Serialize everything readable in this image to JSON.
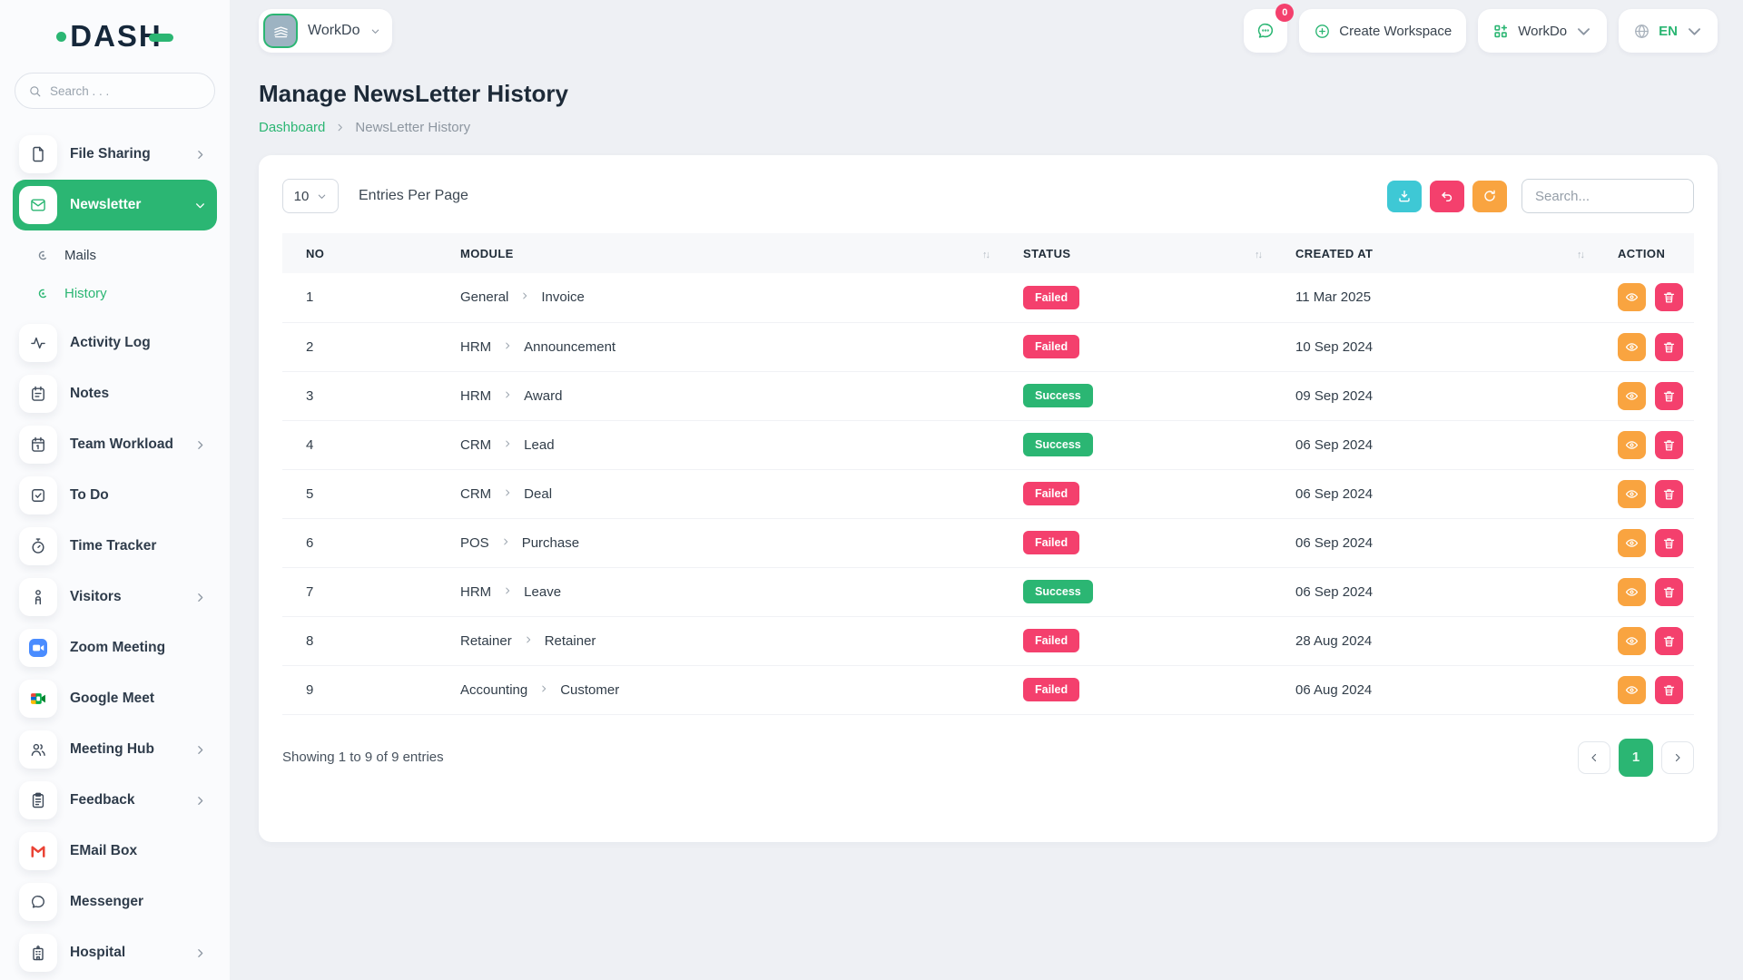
{
  "colors": {
    "primary": "#2bb673",
    "danger": "#f4406d",
    "warning": "#f9a440",
    "info": "#3ec8d5"
  },
  "brand": {
    "name": "DASH"
  },
  "sidebar": {
    "search_placeholder": "Search . . .",
    "items": [
      {
        "label": "File Sharing",
        "icon": "file",
        "chevron": "right"
      },
      {
        "label": "Newsletter",
        "icon": "mail",
        "chevron": "down",
        "active": true,
        "children": [
          {
            "label": "Mails",
            "active": false
          },
          {
            "label": "History",
            "active": true
          }
        ]
      },
      {
        "label": "Activity Log",
        "icon": "activity"
      },
      {
        "label": "Notes",
        "icon": "note"
      },
      {
        "label": "Team Workload",
        "icon": "calendar",
        "chevron": "right"
      },
      {
        "label": "To Do",
        "icon": "check-square"
      },
      {
        "label": "Time Tracker",
        "icon": "alarm"
      },
      {
        "label": "Visitors",
        "icon": "person",
        "chevron": "right"
      },
      {
        "label": "Zoom Meeting",
        "icon": "zoom"
      },
      {
        "label": "Google Meet",
        "icon": "meet"
      },
      {
        "label": "Meeting Hub",
        "icon": "users",
        "chevron": "right"
      },
      {
        "label": "Feedback",
        "icon": "clipboard",
        "chevron": "right"
      },
      {
        "label": "EMail Box",
        "icon": "gmail"
      },
      {
        "label": "Messenger",
        "icon": "chat"
      },
      {
        "label": "Hospital",
        "icon": "hospital",
        "chevron": "right"
      }
    ]
  },
  "topbar": {
    "workspace_label": "WorkDo",
    "messages_badge": "0",
    "create_workspace_label": "Create Workspace",
    "workdo_menu_label": "WorkDo",
    "language": "EN"
  },
  "page": {
    "title": "Manage NewsLetter History",
    "breadcrumb": [
      {
        "label": "Dashboard"
      },
      {
        "label": "NewsLetter History"
      }
    ]
  },
  "card": {
    "entries_per_page": {
      "value": "10",
      "label": "Entries Per Page"
    },
    "search_placeholder": "Search...",
    "table": {
      "columns": [
        {
          "label": "NO",
          "sortable": false
        },
        {
          "label": "MODULE",
          "sortable": true
        },
        {
          "label": "STATUS",
          "sortable": true
        },
        {
          "label": "CREATED AT",
          "sortable": true
        },
        {
          "label": "ACTION",
          "sortable": false
        }
      ],
      "rows": [
        {
          "no": "1",
          "module": "General",
          "submodule": "Invoice",
          "status": "Failed",
          "created_at": "11 Mar 2025"
        },
        {
          "no": "2",
          "module": "HRM",
          "submodule": "Announcement",
          "status": "Failed",
          "created_at": "10 Sep 2024"
        },
        {
          "no": "3",
          "module": "HRM",
          "submodule": "Award",
          "status": "Success",
          "created_at": "09 Sep 2024"
        },
        {
          "no": "4",
          "module": "CRM",
          "submodule": "Lead",
          "status": "Success",
          "created_at": "06 Sep 2024"
        },
        {
          "no": "5",
          "module": "CRM",
          "submodule": "Deal",
          "status": "Failed",
          "created_at": "06 Sep 2024"
        },
        {
          "no": "6",
          "module": "POS",
          "submodule": "Purchase",
          "status": "Failed",
          "created_at": "06 Sep 2024"
        },
        {
          "no": "7",
          "module": "HRM",
          "submodule": "Leave",
          "status": "Success",
          "created_at": "06 Sep 2024"
        },
        {
          "no": "8",
          "module": "Retainer",
          "submodule": "Retainer",
          "status": "Failed",
          "created_at": "28 Aug 2024"
        },
        {
          "no": "9",
          "module": "Accounting",
          "submodule": "Customer",
          "status": "Failed",
          "created_at": "06 Aug 2024"
        }
      ]
    },
    "footer": {
      "summary": "Showing 1 to 9 of 9 entries",
      "current_page": "1"
    }
  }
}
